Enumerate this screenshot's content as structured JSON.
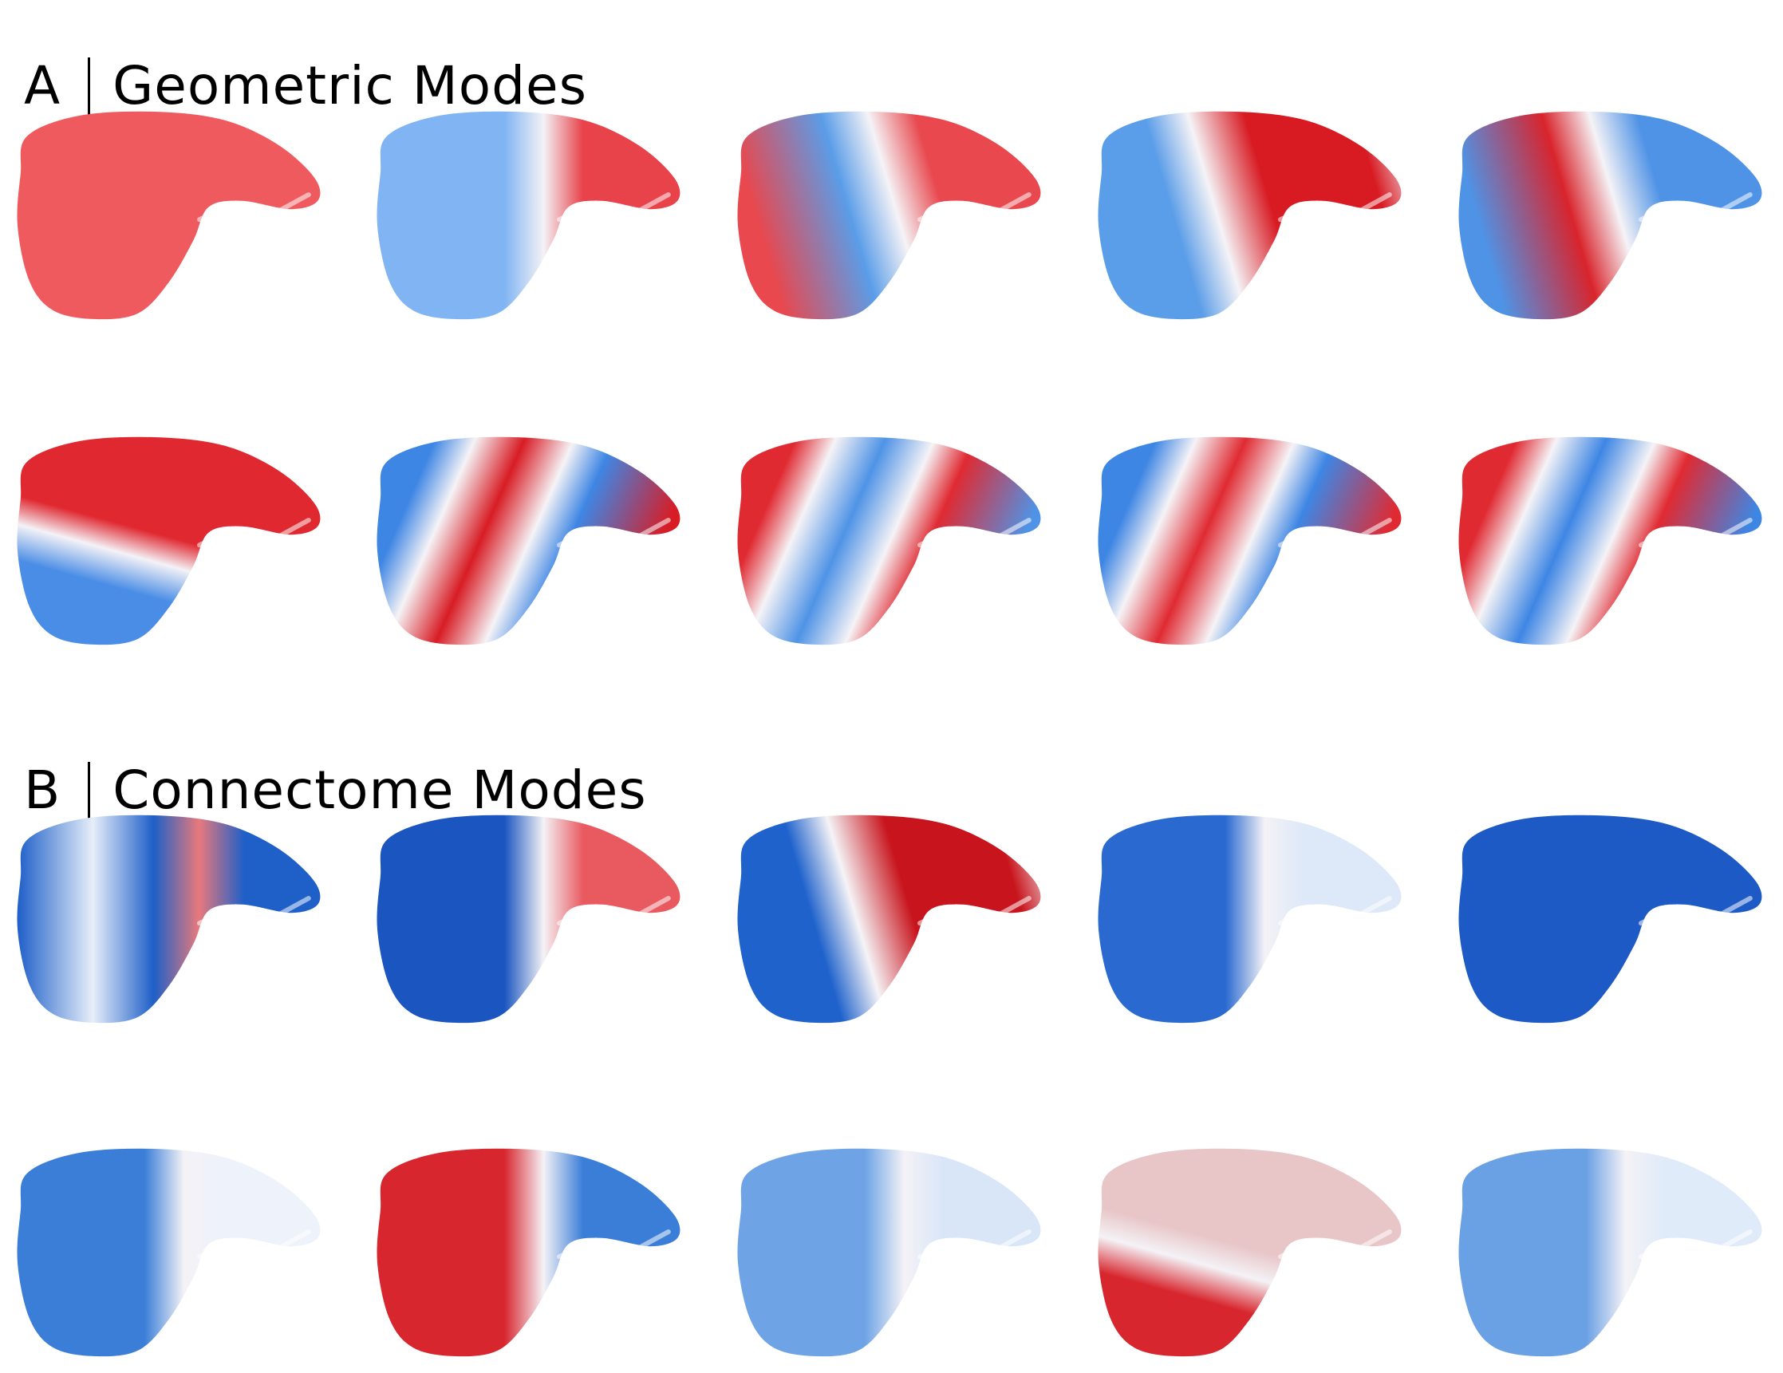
{
  "panels": [
    {
      "letter": "A",
      "title": "Geometric Modes",
      "modes": [
        {
          "fill": "uniform",
          "a": "#ef5a5e",
          "b": "#ef5a5e"
        },
        {
          "fill": "front-back",
          "a": "#80b4f2",
          "b": "#e8424a"
        },
        {
          "fill": "band-3",
          "a": "#e8484e",
          "b": "#5a9de8"
        },
        {
          "fill": "band-3-inv",
          "a": "#5a9de8",
          "b": "#d81a22"
        },
        {
          "fill": "band-3",
          "a": "#4f93e6",
          "b": "#d9242c"
        },
        {
          "fill": "top-bottom",
          "a": "#e02830",
          "b": "#4a8de6"
        },
        {
          "fill": "band-4",
          "a": "#3e86e4",
          "b": "#d81c24"
        },
        {
          "fill": "band-4",
          "a": "#e02a32",
          "b": "#4f93e6"
        },
        {
          "fill": "band-4",
          "a": "#3e86e4",
          "b": "#e02a32"
        },
        {
          "fill": "band-4",
          "a": "#e02a32",
          "b": "#3e86e4"
        }
      ]
    },
    {
      "letter": "B",
      "title": "Connectome Modes",
      "modes": [
        {
          "fill": "noisy",
          "a": "#1e5fc8",
          "b": "#e8797c"
        },
        {
          "fill": "front-back",
          "a": "#1a55c0",
          "b": "#e85a60"
        },
        {
          "fill": "band-3-inv",
          "a": "#1f62cc",
          "b": "#c8141c"
        },
        {
          "fill": "front-back",
          "a": "#2a6ad0",
          "b": "#dde8f8"
        },
        {
          "fill": "uniform",
          "a": "#1d5ac6",
          "b": "#1d5ac6"
        },
        {
          "fill": "front-back",
          "a": "#3a7ed8",
          "b": "#eef2fb"
        },
        {
          "fill": "front-back",
          "a": "#d8262e",
          "b": "#3a7ed8"
        },
        {
          "fill": "front-back",
          "a": "#6ea4e6",
          "b": "#d9e6f8"
        },
        {
          "fill": "top-bottom",
          "a": "#e8c6c8",
          "b": "#d8262e"
        },
        {
          "fill": "front-back",
          "a": "#6aa0e4",
          "b": "#e0ebf9"
        }
      ]
    }
  ]
}
